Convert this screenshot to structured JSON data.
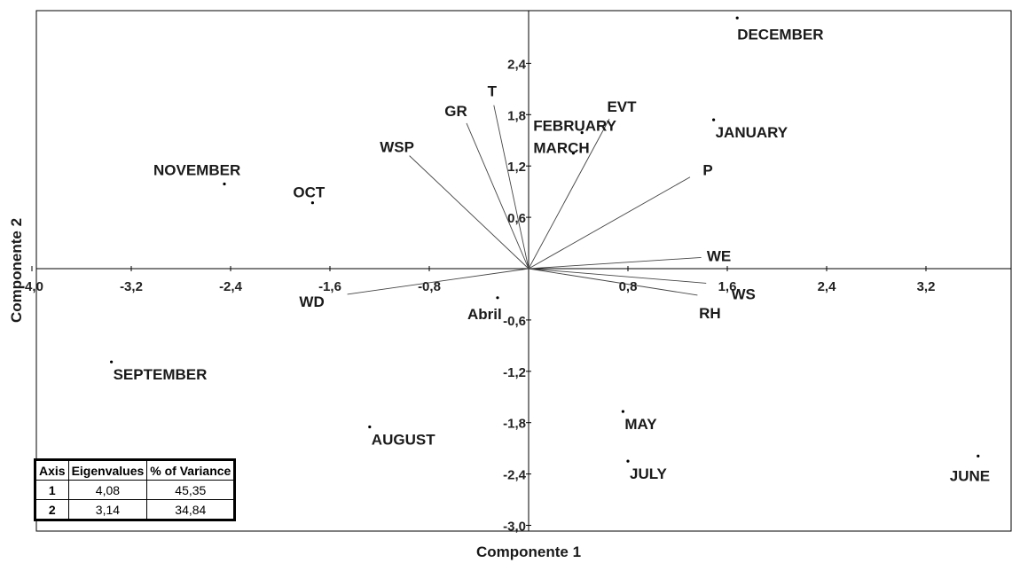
{
  "chart_data": {
    "type": "scatter",
    "xlabel": "Componente 1",
    "ylabel": "Componente 2",
    "xlim": [
      -4.0,
      3.9
    ],
    "ylim": [
      -3.0,
      3.0
    ],
    "x_ticks": [
      "-4,0",
      "-3,2",
      "-2,4",
      "-1,6",
      "-0,8",
      "0,8",
      "1,6",
      "2,4",
      "3,2"
    ],
    "x_tick_values": [
      -4.0,
      -3.2,
      -2.4,
      -1.6,
      -0.8,
      0.8,
      1.6,
      2.4,
      3.2
    ],
    "y_ticks": [
      "2,4",
      "1,8",
      "1,2",
      "0,6",
      "-0,6",
      "-1,2",
      "-1,8",
      "-2,4",
      "-3,0"
    ],
    "y_tick_values": [
      2.4,
      1.8,
      1.2,
      0.6,
      -0.6,
      -1.2,
      -1.8,
      -2.4,
      -3.0
    ],
    "grid": false,
    "points": [
      {
        "label": "DECEMBER",
        "x": 1.68,
        "y": 2.93
      },
      {
        "label": "JANUARY",
        "x": 1.49,
        "y": 1.74
      },
      {
        "label": "FEBRUARY",
        "x": 0.43,
        "y": 1.59
      },
      {
        "label": "MARCH",
        "x": 0.36,
        "y": 1.35
      },
      {
        "label": "NOVEMBER",
        "x": -2.45,
        "y": 0.99
      },
      {
        "label": "OCT",
        "x": -1.74,
        "y": 0.77
      },
      {
        "label": "Abril",
        "x": -0.25,
        "y": -0.34
      },
      {
        "label": "SEPTEMBER",
        "x": -3.36,
        "y": -1.09
      },
      {
        "label": "AUGUST",
        "x": -1.28,
        "y": -1.85
      },
      {
        "label": "MAY",
        "x": 0.76,
        "y": -1.67
      },
      {
        "label": "JULY",
        "x": 0.8,
        "y": -2.25
      },
      {
        "label": "JUNE",
        "x": 3.62,
        "y": -2.19
      }
    ],
    "vectors": [
      {
        "label": "T",
        "x": -0.28,
        "y": 1.91
      },
      {
        "label": "GR",
        "x": -0.5,
        "y": 1.7
      },
      {
        "label": "WSP",
        "x": -0.96,
        "y": 1.32
      },
      {
        "label": "EVT",
        "x": 0.65,
        "y": 1.75
      },
      {
        "label": "P",
        "x": 1.3,
        "y": 1.07
      },
      {
        "label": "WE",
        "x": 1.39,
        "y": 0.13
      },
      {
        "label": "WS",
        "x": 1.43,
        "y": -0.17
      },
      {
        "label": "RH",
        "x": 1.36,
        "y": -0.31
      },
      {
        "label": "WD",
        "x": -1.46,
        "y": -0.3
      }
    ],
    "legend_table": {
      "headers": [
        "Axis",
        "Eigenvalues",
        "% of Variance"
      ],
      "rows": [
        [
          "1",
          "4,08",
          "45,35"
        ],
        [
          "2",
          "3,14",
          "34,84"
        ]
      ]
    }
  }
}
